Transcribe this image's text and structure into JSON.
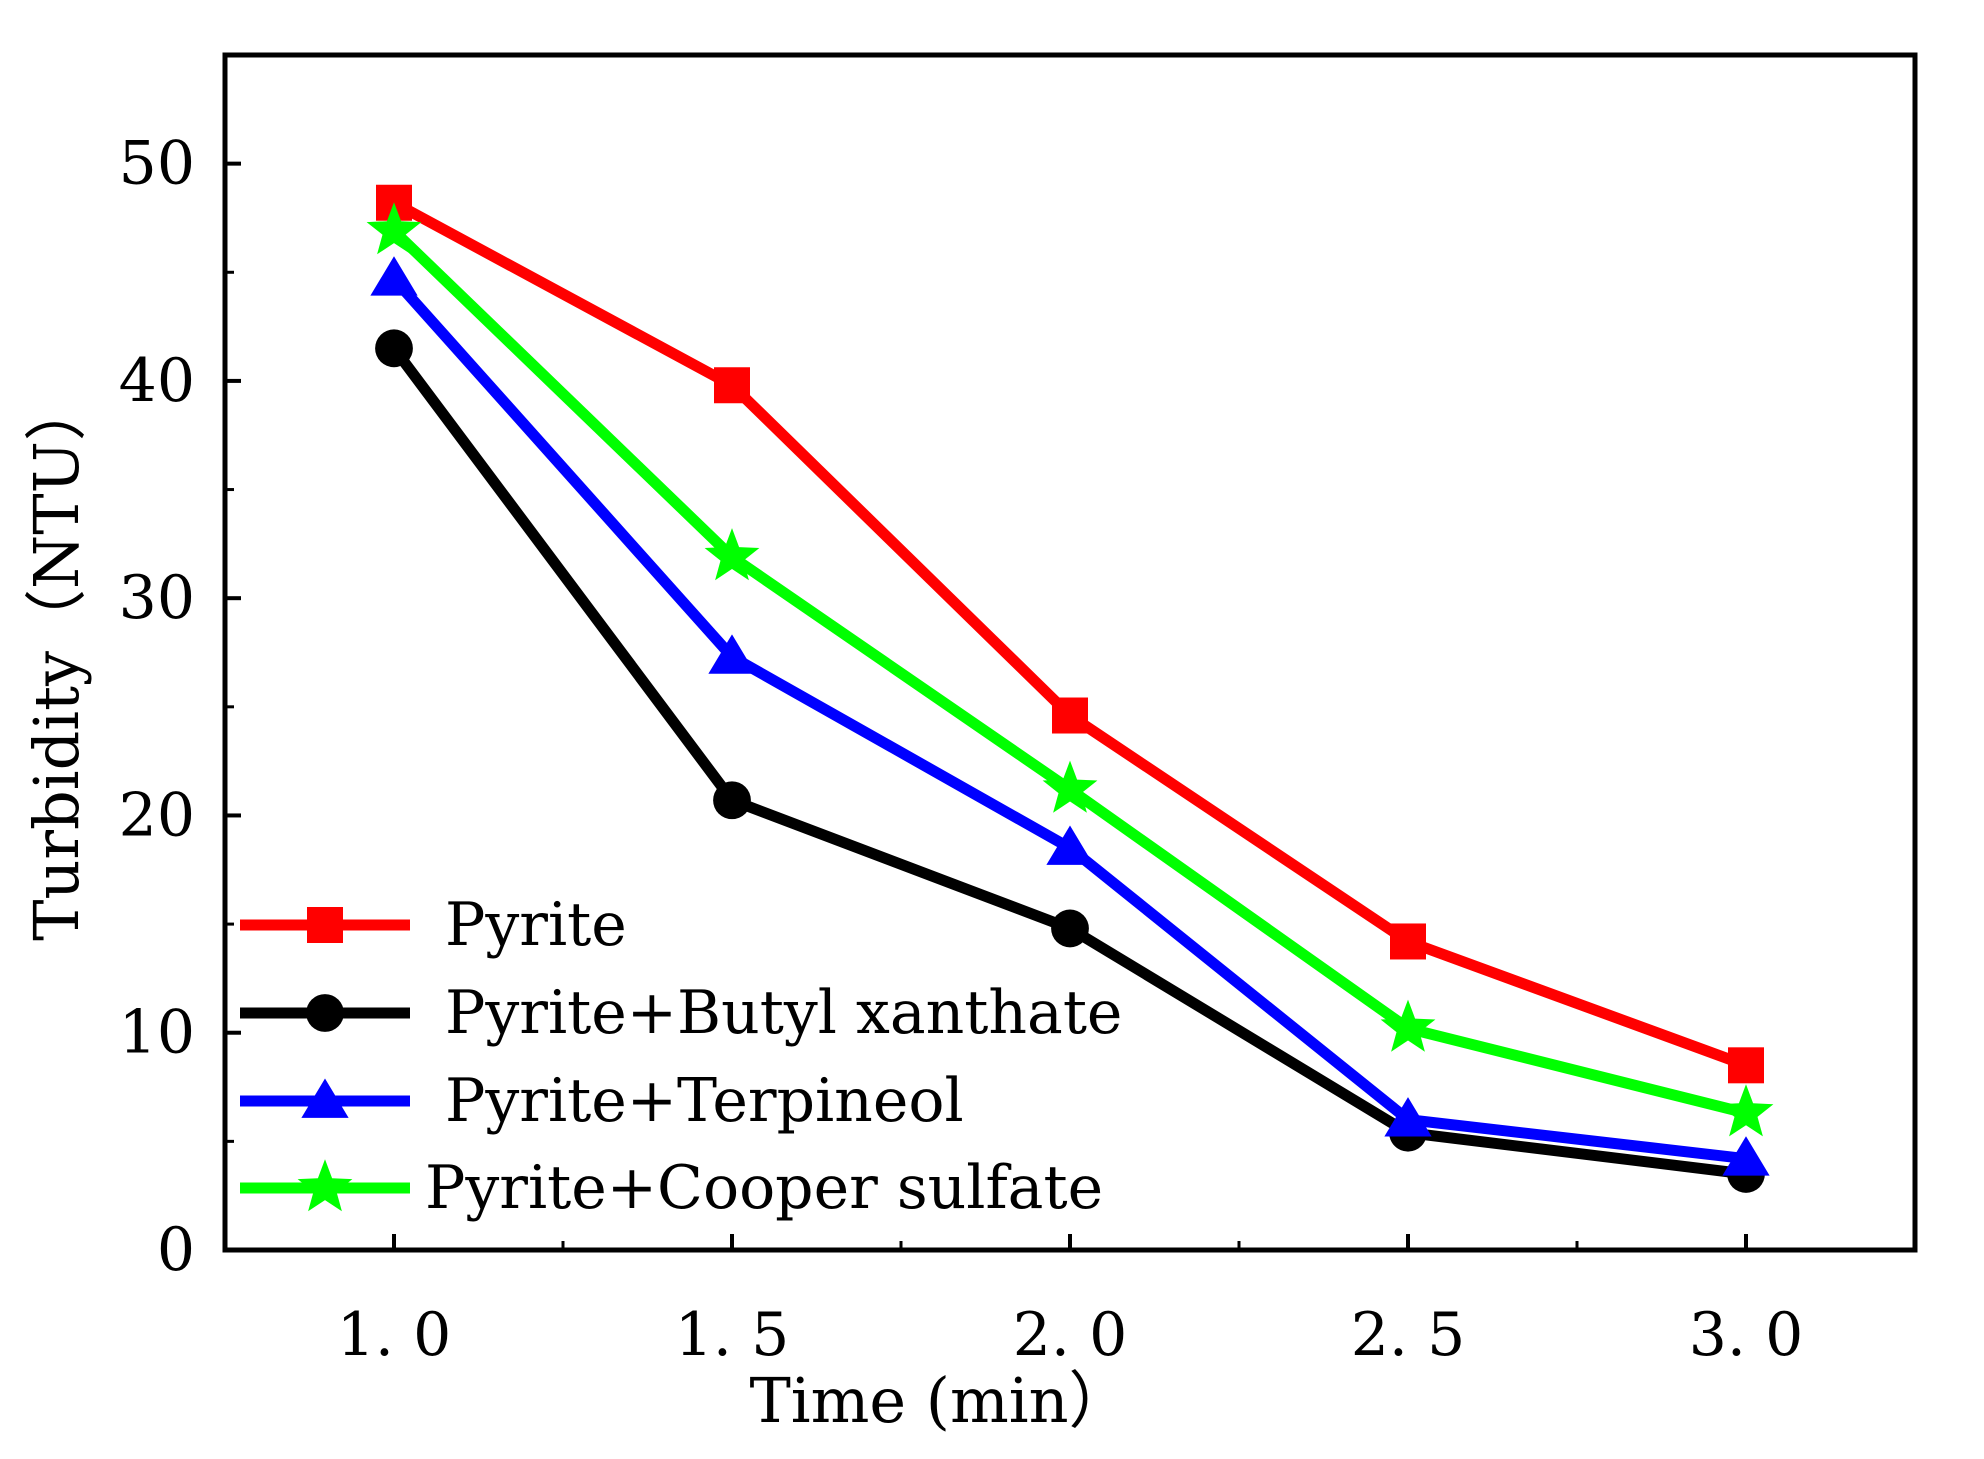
{
  "chart_data": {
    "type": "line",
    "title": "",
    "xlabel": "Time  (min）",
    "ylabel": "Turbidity（NTU）",
    "x": [
      1.0,
      1.5,
      2.0,
      2.5,
      3.0
    ],
    "x_tick_labels": [
      "1. 0",
      "1. 5",
      "2. 0",
      "2. 5",
      "3. 0"
    ],
    "y_ticks": [
      0,
      10,
      20,
      30,
      40,
      50
    ],
    "y_tick_labels": [
      "0",
      "10",
      "20",
      "30",
      "40",
      "50"
    ],
    "xlim": [
      0.75,
      3.25
    ],
    "ylim": [
      0,
      55
    ],
    "grid": false,
    "legend_position": "bottom-left",
    "series": [
      {
        "name": "Pyrite",
        "color": "#ff0000",
        "marker": "square",
        "values": [
          48.2,
          39.8,
          24.6,
          14.2,
          8.5
        ]
      },
      {
        "name": "Pyrite+Butyl xanthate",
        "color": "#000000",
        "marker": "circle",
        "values": [
          41.5,
          20.7,
          14.8,
          5.4,
          3.5
        ]
      },
      {
        "name": "Pyrite+Terpineol",
        "color": "#0000ff",
        "marker": "triangle",
        "values": [
          44.7,
          27.3,
          18.5,
          6.0,
          4.2
        ]
      },
      {
        "name": "Pyrite+Cooper sulfate",
        "color": "#00ff00",
        "marker": "star",
        "values": [
          46.9,
          31.9,
          21.2,
          10.2,
          6.3
        ]
      }
    ]
  }
}
